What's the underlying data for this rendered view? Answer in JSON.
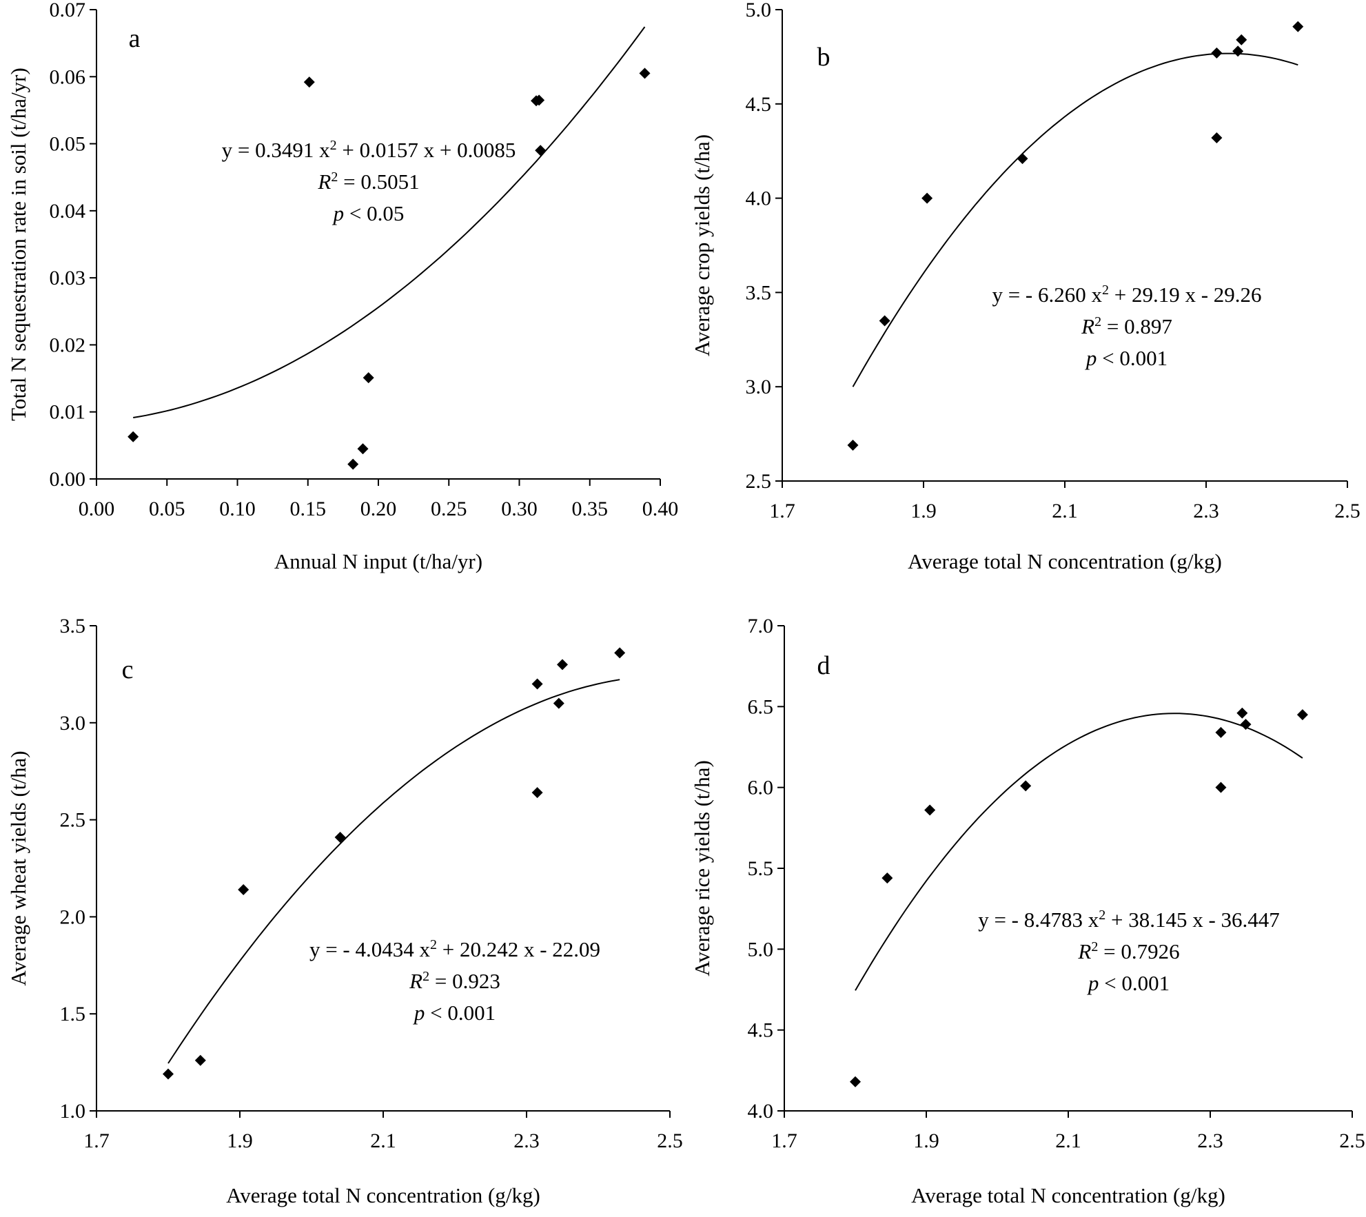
{
  "chart_data": [
    {
      "type": "scatter",
      "label": "a",
      "xlabel": "Annual N input (t/ha/yr)",
      "ylabel": "Total N sequestration rate in soil (t/ha/yr)",
      "xlim": [
        0,
        0.4
      ],
      "ylim": [
        0,
        0.07
      ],
      "xticks": [
        0,
        0.05,
        0.1,
        0.15,
        0.2,
        0.25,
        0.3,
        0.35,
        0.4
      ],
      "yticks": [
        0,
        0.01,
        0.02,
        0.03,
        0.04,
        0.05,
        0.06,
        0.07
      ],
      "xtick_labels": [
        "0.00",
        "0.05",
        "0.10",
        "0.15",
        "0.20",
        "0.25",
        "0.30",
        "0.35",
        "0.40"
      ],
      "ytick_labels": [
        "0.00",
        "0.01",
        "0.02",
        "0.03",
        "0.04",
        "0.05",
        "0.06",
        "0.07"
      ],
      "points": [
        [
          0.026,
          0.0063
        ],
        [
          0.151,
          0.0592
        ],
        [
          0.182,
          0.0022
        ],
        [
          0.189,
          0.0045
        ],
        [
          0.193,
          0.0151
        ],
        [
          0.312,
          0.0564
        ],
        [
          0.314,
          0.0565
        ],
        [
          0.315,
          0.049
        ],
        [
          0.389,
          0.0605
        ]
      ],
      "fit": {
        "a": 0.3491,
        "b": 0.0157,
        "c": 0.0085,
        "x_range": [
          0.026,
          0.389
        ]
      },
      "equation": {
        "eq": "y = 0.3491 x",
        "eq_sup": "2",
        "eq_rest": " + 0.0157 x + 0.0085",
        "r_label": "R",
        "r_sup": "2",
        "r_value": " = 0.5051",
        "p_label": "p",
        "p_value": " < 0.05"
      }
    },
    {
      "type": "scatter",
      "label": "b",
      "xlabel": "Average total N concentration (g/kg)",
      "ylabel": "Average crop yields (t/ha)",
      "xlim": [
        1.7,
        2.5
      ],
      "ylim": [
        2.5,
        5.0
      ],
      "xticks": [
        1.7,
        1.9,
        2.1,
        2.3,
        2.5
      ],
      "yticks": [
        2.5,
        3.0,
        3.5,
        4.0,
        4.5,
        5.0
      ],
      "xtick_labels": [
        "1.7",
        "1.9",
        "2.1",
        "2.3",
        "2.5"
      ],
      "ytick_labels": [
        "2.5",
        "3.0",
        "3.5",
        "4.0",
        "4.5",
        "5.0"
      ],
      "points": [
        [
          1.8,
          2.69
        ],
        [
          1.845,
          3.35
        ],
        [
          1.905,
          4.0
        ],
        [
          2.04,
          4.21
        ],
        [
          2.315,
          4.32
        ],
        [
          2.315,
          4.77
        ],
        [
          2.345,
          4.78
        ],
        [
          2.35,
          4.84
        ],
        [
          2.43,
          4.91
        ]
      ],
      "fit": {
        "a": -6.26,
        "b": 29.19,
        "c": -29.26,
        "x_range": [
          1.8,
          2.43
        ]
      },
      "equation": {
        "eq": "y = - 6.260 x",
        "eq_sup": "2",
        "eq_rest": " + 29.19 x - 29.26",
        "r_label": "R",
        "r_sup": "2",
        "r_value": " = 0.897",
        "p_label": "p",
        "p_value": " < 0.001"
      }
    },
    {
      "type": "scatter",
      "label": "c",
      "xlabel": "Average total N concentration (g/kg)",
      "ylabel": "Average wheat yields (t/ha)",
      "xlim": [
        1.7,
        2.5
      ],
      "ylim": [
        1.0,
        3.5
      ],
      "xticks": [
        1.7,
        1.9,
        2.1,
        2.3,
        2.5
      ],
      "yticks": [
        1.0,
        1.5,
        2.0,
        2.5,
        3.0,
        3.5
      ],
      "xtick_labels": [
        "1.7",
        "1.9",
        "2.1",
        "2.3",
        "2.5"
      ],
      "ytick_labels": [
        "1.0",
        "1.5",
        "2.0",
        "2.5",
        "3.0",
        "3.5"
      ],
      "points": [
        [
          1.8,
          1.19
        ],
        [
          1.845,
          1.26
        ],
        [
          1.905,
          2.14
        ],
        [
          2.04,
          2.41
        ],
        [
          2.315,
          2.64
        ],
        [
          2.315,
          3.2
        ],
        [
          2.345,
          3.1
        ],
        [
          2.35,
          3.3
        ],
        [
          2.43,
          3.36
        ]
      ],
      "fit": {
        "a": -4.0434,
        "b": 20.242,
        "c": -22.09,
        "x_range": [
          1.8,
          2.43
        ]
      },
      "equation": {
        "eq": "y = - 4.0434 x",
        "eq_sup": "2",
        "eq_rest": " + 20.242 x - 22.09",
        "r_label": "R",
        "r_sup": "2",
        "r_value": " = 0.923",
        "p_label": "p",
        "p_value": " < 0.001"
      }
    },
    {
      "type": "scatter",
      "label": "d",
      "xlabel": "Average total N concentration (g/kg)",
      "ylabel": "Average rice yields (t/ha)",
      "xlim": [
        1.7,
        2.5
      ],
      "ylim": [
        4.0,
        7.0
      ],
      "xticks": [
        1.7,
        1.9,
        2.1,
        2.3,
        2.5
      ],
      "yticks": [
        4.0,
        4.5,
        5.0,
        5.5,
        6.0,
        6.5,
        7.0
      ],
      "xtick_labels": [
        "1.7",
        "1.9",
        "2.1",
        "2.3",
        "2.5"
      ],
      "ytick_labels": [
        "4.0",
        "4.5",
        "5.0",
        "5.5",
        "6.0",
        "6.5",
        "7.0"
      ],
      "points": [
        [
          1.8,
          4.18
        ],
        [
          1.845,
          5.44
        ],
        [
          1.905,
          5.86
        ],
        [
          2.04,
          6.01
        ],
        [
          2.315,
          6.0
        ],
        [
          2.315,
          6.34
        ],
        [
          2.345,
          6.46
        ],
        [
          2.35,
          6.39
        ],
        [
          2.43,
          6.45
        ]
      ],
      "fit": {
        "a": -8.4783,
        "b": 38.145,
        "c": -36.447,
        "x_range": [
          1.8,
          2.43
        ]
      },
      "equation": {
        "eq": "y = - 8.4783 x",
        "eq_sup": "2",
        "eq_rest": " + 38.145 x - 36.447",
        "r_label": "R",
        "r_sup": "2",
        "r_value": " = 0.7926",
        "p_label": "p",
        "p_value": " < 0.001"
      }
    }
  ]
}
